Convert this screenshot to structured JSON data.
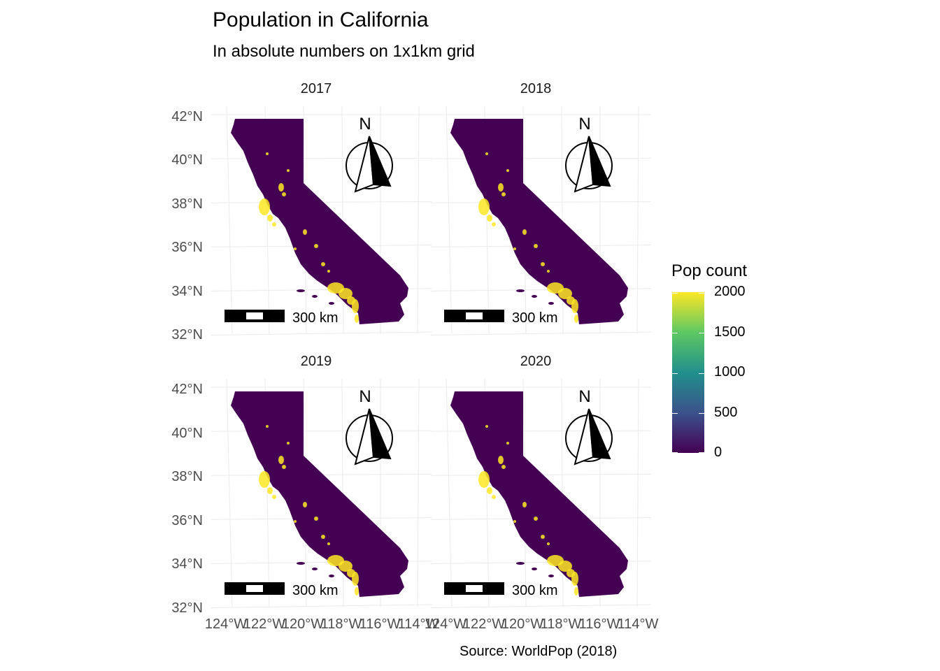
{
  "title": "Population in California",
  "subtitle": "In absolute numbers on 1x1km grid",
  "caption": "Source: WorldPop (2018)",
  "panels": [
    {
      "year": "2017"
    },
    {
      "year": "2018"
    },
    {
      "year": "2019"
    },
    {
      "year": "2020"
    }
  ],
  "map": {
    "north_label": "N",
    "scale_label": "300 km",
    "land_color": "#440154",
    "urban_color": "#fde725"
  },
  "y_axis_labels": [
    "42°N",
    "40°N",
    "38°N",
    "36°N",
    "34°N",
    "32°N"
  ],
  "x_axis_labels": [
    "124°W",
    "122°W",
    "120°W",
    "118°W",
    "116°W",
    "114°W"
  ],
  "legend": {
    "title": "Pop count",
    "labels": [
      "2000",
      "1500",
      "1000",
      "500",
      "0"
    ],
    "scale": {
      "min": 0,
      "max": 2000
    },
    "colors": [
      "#440154",
      "#3b528b",
      "#21908c",
      "#5dc863",
      "#fde725"
    ]
  },
  "chart_data": {
    "type": "heatmap",
    "facets": [
      "2017",
      "2018",
      "2019",
      "2020"
    ],
    "variable": "Pop count",
    "color_range": [
      0,
      2000
    ],
    "lat_range": [
      32,
      42
    ],
    "lon_range": [
      -124,
      -114
    ]
  }
}
